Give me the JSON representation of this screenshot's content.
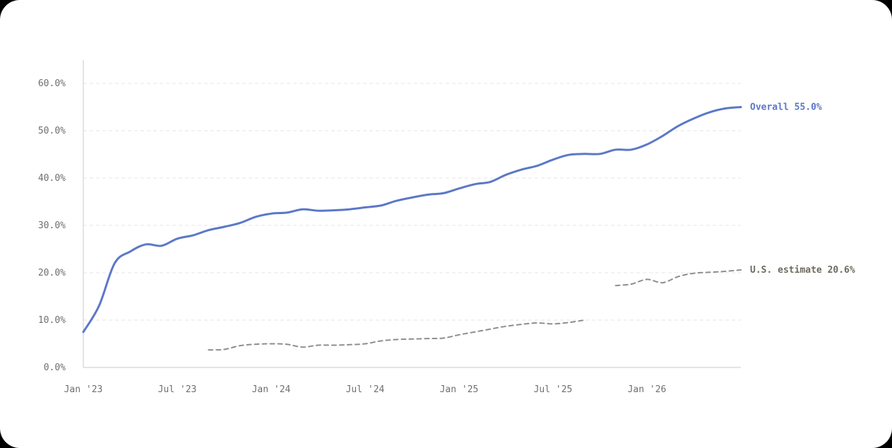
{
  "chart_data": {
    "type": "line",
    "title": "",
    "xlabel": "",
    "ylabel": "",
    "ylim": [
      0,
      0.65
    ],
    "y_ticks": [
      "0.0%",
      "10.0%",
      "20.0%",
      "30.0%",
      "40.0%",
      "50.0%",
      "60.0%"
    ],
    "y_tick_values": [
      0,
      0.1,
      0.2,
      0.3,
      0.4,
      0.5,
      0.6
    ],
    "x_ticks": [
      "Jan '23",
      "Jul '23",
      "Jan '24",
      "Jul '24",
      "Jan '25",
      "Jul '25",
      "Jan '26"
    ],
    "x_tick_values": [
      "2023-01",
      "2023-07",
      "2024-01",
      "2024-07",
      "2025-01",
      "2025-07",
      "2026-01"
    ],
    "grid": true,
    "series": [
      {
        "name": "Overall",
        "color": "#5b78c8",
        "style": "solid",
        "end_label": "Overall 55.0%",
        "points": [
          [
            "2023-01",
            0.075
          ],
          [
            "2023-02",
            0.13
          ],
          [
            "2023-03",
            0.22
          ],
          [
            "2023-04",
            0.245
          ],
          [
            "2023-05",
            0.26
          ],
          [
            "2023-06",
            0.257
          ],
          [
            "2023-07",
            0.272
          ],
          [
            "2023-08",
            0.279
          ],
          [
            "2023-09",
            0.29
          ],
          [
            "2023-10",
            0.297
          ],
          [
            "2023-11",
            0.305
          ],
          [
            "2023-12",
            0.318
          ],
          [
            "2024-01",
            0.325
          ],
          [
            "2024-02",
            0.327
          ],
          [
            "2024-03",
            0.334
          ],
          [
            "2024-04",
            0.331
          ],
          [
            "2024-05",
            0.332
          ],
          [
            "2024-06",
            0.334
          ],
          [
            "2024-07",
            0.338
          ],
          [
            "2024-08",
            0.342
          ],
          [
            "2024-09",
            0.352
          ],
          [
            "2024-10",
            0.359
          ],
          [
            "2024-11",
            0.365
          ],
          [
            "2024-12",
            0.368
          ],
          [
            "2025-01",
            0.378
          ],
          [
            "2025-02",
            0.387
          ],
          [
            "2025-03",
            0.392
          ],
          [
            "2025-04",
            0.407
          ],
          [
            "2025-05",
            0.418
          ],
          [
            "2025-06",
            0.426
          ],
          [
            "2025-07",
            0.439
          ],
          [
            "2025-08",
            0.449
          ],
          [
            "2025-09",
            0.451
          ],
          [
            "2025-10",
            0.451
          ],
          [
            "2025-11",
            0.46
          ],
          [
            "2025-12",
            0.46
          ],
          [
            "2026-01",
            0.471
          ],
          [
            "2026-02",
            0.489
          ],
          [
            "2026-03",
            0.51
          ],
          [
            "2026-04",
            0.526
          ],
          [
            "2026-05",
            0.539
          ],
          [
            "2026-06",
            0.547
          ],
          [
            "2026-07",
            0.55
          ]
        ]
      },
      {
        "name": "U.S. estimate",
        "color": "#8e8e8e",
        "style": "dashed",
        "end_label": "U.S. estimate 20.6%",
        "segments": [
          [
            [
              "2023-09",
              0.037
            ],
            [
              "2023-10",
              0.038
            ],
            [
              "2023-11",
              0.046
            ],
            [
              "2023-12",
              0.049
            ],
            [
              "2024-01",
              0.05
            ],
            [
              "2024-02",
              0.049
            ],
            [
              "2024-03",
              0.043
            ],
            [
              "2024-04",
              0.047
            ],
            [
              "2024-05",
              0.047
            ],
            [
              "2024-06",
              0.048
            ],
            [
              "2024-07",
              0.05
            ],
            [
              "2024-08",
              0.056
            ],
            [
              "2024-09",
              0.059
            ],
            [
              "2024-10",
              0.06
            ],
            [
              "2024-11",
              0.061
            ],
            [
              "2024-12",
              0.062
            ],
            [
              "2025-01",
              0.069
            ],
            [
              "2025-02",
              0.075
            ],
            [
              "2025-03",
              0.081
            ],
            [
              "2025-04",
              0.087
            ],
            [
              "2025-05",
              0.091
            ],
            [
              "2025-06",
              0.094
            ],
            [
              "2025-07",
              0.092
            ],
            [
              "2025-08",
              0.095
            ],
            [
              "2025-09",
              0.1
            ]
          ],
          [
            [
              "2025-11",
              0.173
            ],
            [
              "2025-12",
              0.176
            ],
            [
              "2026-01",
              0.186
            ],
            [
              "2026-02",
              0.179
            ],
            [
              "2026-03",
              0.192
            ],
            [
              "2026-04",
              0.199
            ],
            [
              "2026-05",
              0.201
            ],
            [
              "2026-06",
              0.203
            ],
            [
              "2026-07",
              0.206
            ]
          ]
        ]
      }
    ]
  }
}
